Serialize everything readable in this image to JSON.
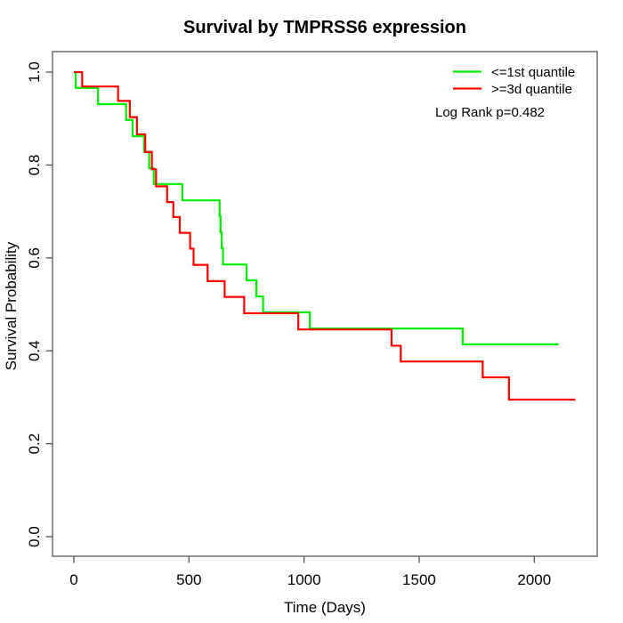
{
  "chart_data": {
    "type": "line",
    "subtype": "kaplan-meier-step",
    "title": "Survival by TMPRSS6 expression",
    "xlabel": "Time (Days)",
    "ylabel": "Survival Probability",
    "xlim": [
      0,
      2200
    ],
    "ylim": [
      0.0,
      1.0
    ],
    "x_ticks": [
      0,
      500,
      1000,
      1500,
      2000
    ],
    "y_ticks": [
      "0.0",
      "0.2",
      "0.4",
      "0.6",
      "0.8",
      "1.0"
    ],
    "grid": "off",
    "legend_position": "topright",
    "annotation": "Log Rank p=0.482",
    "axis_color": "#555555",
    "text_color": "#000000",
    "series": [
      {
        "name": "<=1st quantile",
        "color": "#00ee00",
        "start": {
          "time": 0,
          "survival": 1.0
        },
        "steps": [
          [
            8,
            0.966
          ],
          [
            105,
            0.931
          ],
          [
            227,
            0.897
          ],
          [
            255,
            0.862
          ],
          [
            305,
            0.828
          ],
          [
            327,
            0.793
          ],
          [
            347,
            0.759
          ],
          [
            471,
            0.724
          ],
          [
            633,
            0.69
          ],
          [
            637,
            0.655
          ],
          [
            642,
            0.621
          ],
          [
            648,
            0.586
          ],
          [
            750,
            0.552
          ],
          [
            793,
            0.517
          ],
          [
            822,
            0.483
          ],
          [
            1025,
            0.448
          ],
          [
            1689,
            0.414
          ]
        ],
        "end_time": 2105,
        "final_survival": 0.414
      },
      {
        "name": ">=3d quantile",
        "color": "#ff0000",
        "start": {
          "time": 0,
          "survival": 1.0
        },
        "steps": [
          [
            36,
            0.969
          ],
          [
            192,
            0.938
          ],
          [
            243,
            0.903
          ],
          [
            274,
            0.866
          ],
          [
            310,
            0.828
          ],
          [
            339,
            0.791
          ],
          [
            357,
            0.754
          ],
          [
            405,
            0.72
          ],
          [
            432,
            0.688
          ],
          [
            460,
            0.654
          ],
          [
            505,
            0.62
          ],
          [
            520,
            0.585
          ],
          [
            581,
            0.55
          ],
          [
            655,
            0.516
          ],
          [
            740,
            0.481
          ],
          [
            975,
            0.446
          ],
          [
            1380,
            0.411
          ],
          [
            1420,
            0.377
          ],
          [
            1776,
            0.343
          ],
          [
            1890,
            0.295
          ]
        ],
        "end_time": 2178,
        "final_survival": 0.295
      }
    ]
  }
}
